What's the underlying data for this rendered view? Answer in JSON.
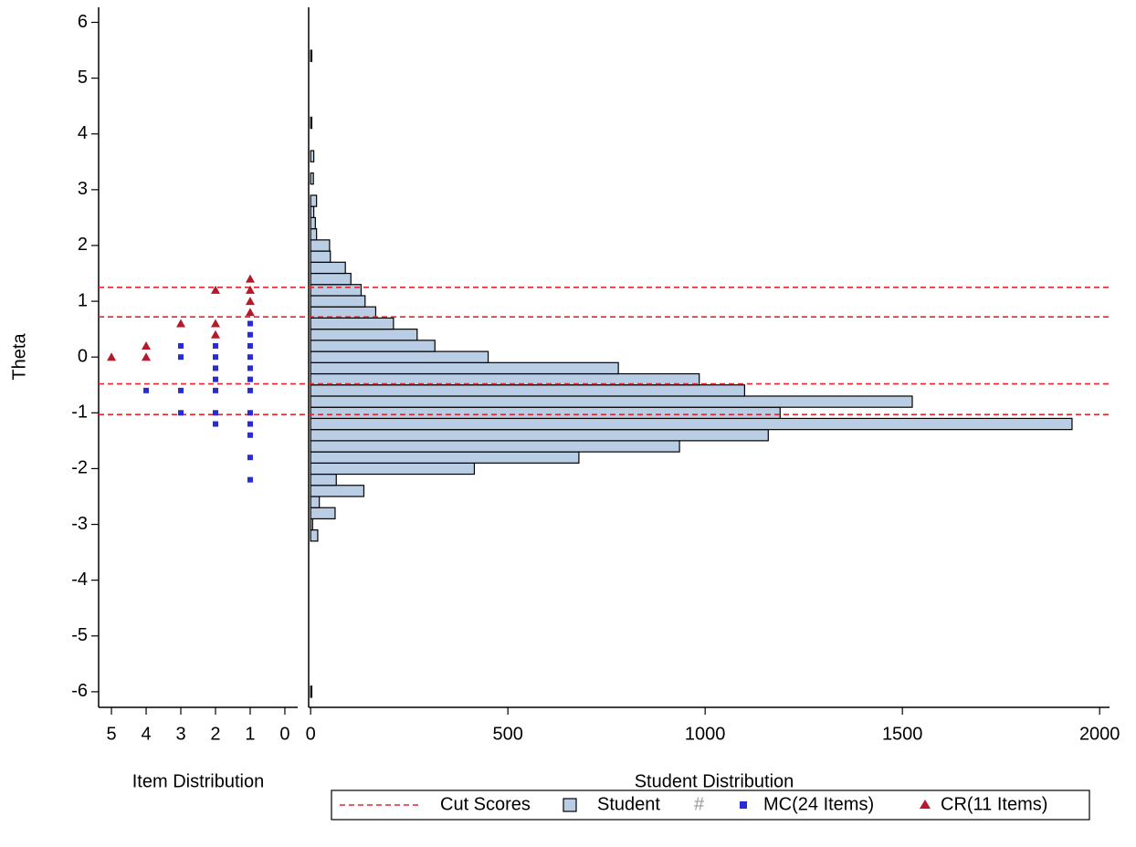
{
  "chart_data": [
    {
      "type": "scatter",
      "xlabel": "Item Distribution",
      "ylabel": "Theta",
      "xlim": [
        5.37,
        -0.37
      ],
      "xticks": [
        5,
        4,
        3,
        2,
        1,
        0
      ],
      "ylim": [
        -6.28,
        6.27
      ],
      "yticks": [
        -6,
        -5,
        -4,
        -3,
        -2,
        -1,
        0,
        1,
        2,
        3,
        4,
        5,
        6
      ],
      "series": [
        {
          "name": "MC(24 Items)",
          "color": "#2b2bd6",
          "marker": "square",
          "x": [
            4,
            3,
            3,
            3,
            3,
            2,
            2,
            2,
            2,
            2,
            2,
            2,
            1,
            1,
            1,
            1,
            1,
            1,
            1,
            1,
            1,
            1,
            1,
            1
          ],
          "y": [
            -0.6,
            0.2,
            0.0,
            -0.6,
            -1.0,
            0.2,
            0.0,
            -0.2,
            -0.4,
            -0.6,
            -1.0,
            -1.2,
            0.6,
            0.4,
            0.2,
            0.0,
            -0.2,
            -0.4,
            -0.6,
            -1.0,
            -1.2,
            -1.4,
            -1.8,
            -2.2
          ]
        },
        {
          "name": "CR(11 Items)",
          "color": "#b5192b",
          "marker": "triangle",
          "x": [
            5,
            4,
            4,
            3,
            2,
            2,
            2,
            1,
            1,
            1,
            1
          ],
          "y": [
            0.0,
            0.2,
            0.0,
            0.6,
            1.2,
            0.6,
            0.4,
            1.4,
            1.2,
            1.0,
            0.8
          ]
        }
      ]
    },
    {
      "type": "histogram",
      "orientation": "horizontal",
      "xlabel": "Student Distribution",
      "name": "Student",
      "color": "#b9cde5",
      "xlim": [
        -5,
        2025
      ],
      "xticks": [
        0,
        500,
        1000,
        1500,
        2000
      ],
      "bins": [
        -6.1,
        -5.9,
        -5.7,
        -5.5,
        -5.3,
        -5.1,
        -4.9,
        -4.7,
        -4.5,
        -4.3,
        -4.1,
        -3.9,
        -3.7,
        -3.5,
        -3.3,
        -3.1,
        -2.9,
        -2.7,
        -2.5,
        -2.3,
        -2.1,
        -1.9,
        -1.7,
        -1.5,
        -1.3,
        -1.1,
        -0.9,
        -0.7,
        -0.5,
        -0.3,
        -0.1,
        0.1,
        0.3,
        0.5,
        0.7,
        0.9,
        1.1,
        1.3,
        1.5,
        1.7,
        1.9,
        2.1,
        2.3,
        2.5,
        2.7,
        2.9,
        3.1,
        3.3,
        3.5,
        3.7,
        3.9,
        4.1,
        4.3,
        4.5,
        4.7,
        4.9,
        5.1,
        5.3,
        5.5,
        5.7,
        5.9,
        6.1
      ],
      "counts": [
        3,
        0,
        0,
        0,
        0,
        0,
        0,
        0,
        0,
        0,
        0,
        0,
        0,
        0,
        18,
        5,
        62,
        22,
        135,
        65,
        415,
        680,
        935,
        1160,
        1930,
        1190,
        1525,
        1100,
        985,
        780,
        450,
        315,
        270,
        210,
        165,
        138,
        128,
        102,
        88,
        50,
        48,
        15,
        12,
        8,
        15,
        0,
        7,
        0,
        8,
        0,
        0,
        3,
        0,
        0,
        0,
        0,
        0,
        3,
        0,
        0,
        0
      ],
      "cut_scores": {
        "name": "Cut Scores",
        "color": "#e0282e",
        "values": [
          1.25,
          0.72,
          -0.48,
          -1.03
        ]
      }
    }
  ]
}
